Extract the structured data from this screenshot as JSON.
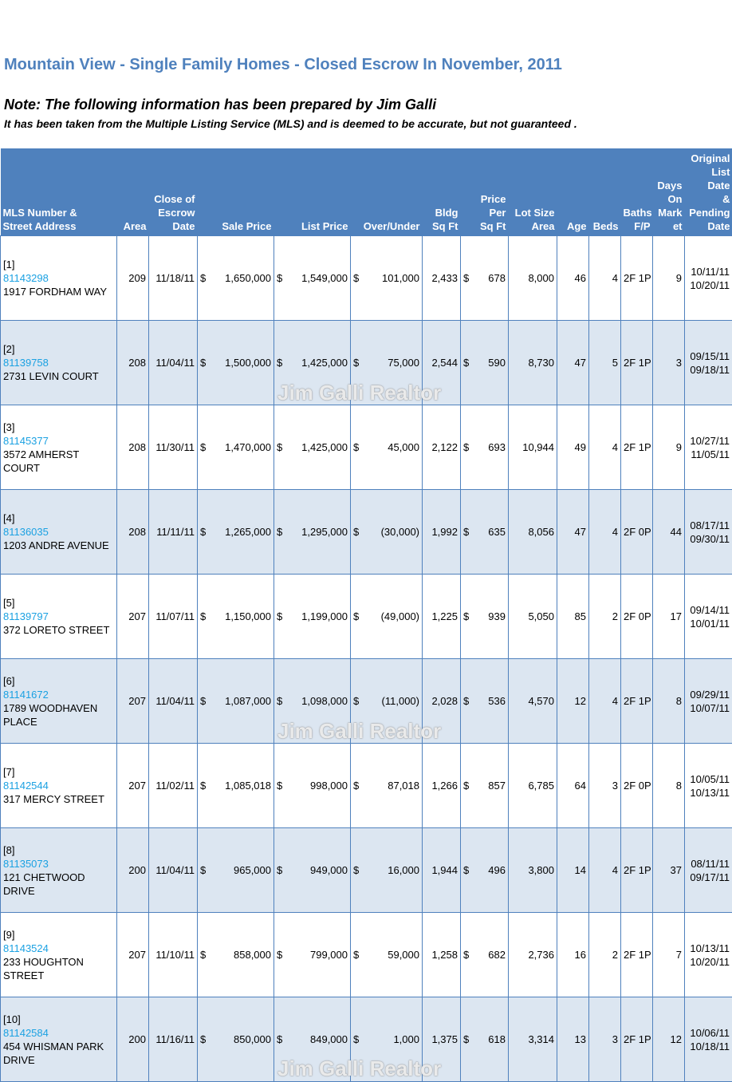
{
  "header": {
    "title": "Mountain View - Single Family Homes - Closed Escrow In November, 2011",
    "note": "Note:  The following information has been prepared by Jim Galli",
    "disclaimer": "It has been taken from the Multiple Listing Service (MLS) and is deemed to be accurate, but not guaranteed ."
  },
  "columns": {
    "mls": [
      "MLS Number &",
      "Street Address"
    ],
    "area": [
      "Area"
    ],
    "close": [
      "Close of",
      "Escrow",
      "Date"
    ],
    "sale": [
      "Sale Price"
    ],
    "list": [
      "List Price"
    ],
    "over": [
      "Over/Under"
    ],
    "bldg": [
      "Bldg",
      "Sq Ft"
    ],
    "ppsf": [
      "Price",
      "Per",
      "Sq Ft"
    ],
    "lot": [
      "Lot Size",
      "Area"
    ],
    "age": [
      "Age"
    ],
    "beds": [
      "Beds"
    ],
    "baths": [
      "Baths",
      "F/P"
    ],
    "dom": [
      "Days",
      "On",
      "Mark",
      "et"
    ],
    "orig": [
      "Original",
      "List Date",
      "&",
      "Pending",
      "Date"
    ]
  },
  "currency_symbol": "$",
  "rows": [
    {
      "idx": "[1]",
      "mls": "81143298",
      "addr": "1917 FORDHAM WAY",
      "area": "209",
      "close": "11/18/11",
      "sale": "1,650,000",
      "list": "1,549,000",
      "over": "101,000",
      "bldg": "2,433",
      "ppsf": "678",
      "lot": "8,000",
      "age": "46",
      "beds": "4",
      "baths": "2F 1P",
      "dom": "9",
      "orig_date": "10/11/11",
      "pend_date": "10/20/11"
    },
    {
      "idx": "[2]",
      "mls": "81139758",
      "addr": "2731 LEVIN COURT",
      "area": "208",
      "close": "11/04/11",
      "sale": "1,500,000",
      "list": "1,425,000",
      "over": "75,000",
      "bldg": "2,544",
      "ppsf": "590",
      "lot": "8,730",
      "age": "47",
      "beds": "5",
      "baths": "2F 1P",
      "dom": "3",
      "orig_date": "09/15/11",
      "pend_date": "09/18/11"
    },
    {
      "idx": "[3]",
      "mls": "81145377",
      "addr": "3572 AMHERST COURT",
      "area": "208",
      "close": "11/30/11",
      "sale": "1,470,000",
      "list": "1,425,000",
      "over": "45,000",
      "bldg": "2,122",
      "ppsf": "693",
      "lot": "10,944",
      "age": "49",
      "beds": "4",
      "baths": "2F 1P",
      "dom": "9",
      "orig_date": "10/27/11",
      "pend_date": "11/05/11"
    },
    {
      "idx": "[4]",
      "mls": "81136035",
      "addr": "1203 ANDRE AVENUE",
      "area": "208",
      "close": "11/11/11",
      "sale": "1,265,000",
      "list": "1,295,000",
      "over": "(30,000)",
      "bldg": "1,992",
      "ppsf": "635",
      "lot": "8,056",
      "age": "47",
      "beds": "4",
      "baths": "2F 0P",
      "dom": "44",
      "orig_date": "08/17/11",
      "pend_date": "09/30/11"
    },
    {
      "idx": "[5]",
      "mls": "81139797",
      "addr": "372 LORETO STREET",
      "area": "207",
      "close": "11/07/11",
      "sale": "1,150,000",
      "list": "1,199,000",
      "over": "(49,000)",
      "bldg": "1,225",
      "ppsf": "939",
      "lot": "5,050",
      "age": "85",
      "beds": "2",
      "baths": "2F 0P",
      "dom": "17",
      "orig_date": "09/14/11",
      "pend_date": "10/01/11"
    },
    {
      "idx": "[6]",
      "mls": "81141672",
      "addr": "1789 WOODHAVEN PLACE",
      "area": "207",
      "close": "11/04/11",
      "sale": "1,087,000",
      "list": "1,098,000",
      "over": "(11,000)",
      "bldg": "2,028",
      "ppsf": "536",
      "lot": "4,570",
      "age": "12",
      "beds": "4",
      "baths": "2F 1P",
      "dom": "8",
      "orig_date": "09/29/11",
      "pend_date": "10/07/11"
    },
    {
      "idx": "[7]",
      "mls": "81142544",
      "addr": "317 MERCY STREET",
      "area": "207",
      "close": "11/02/11",
      "sale": "1,085,018",
      "list": "998,000",
      "over": "87,018",
      "bldg": "1,266",
      "ppsf": "857",
      "lot": "6,785",
      "age": "64",
      "beds": "3",
      "baths": "2F 0P",
      "dom": "8",
      "orig_date": "10/05/11",
      "pend_date": "10/13/11"
    },
    {
      "idx": "[8]",
      "mls": "81135073",
      "addr": "121 CHETWOOD DRIVE",
      "area": "200",
      "close": "11/04/11",
      "sale": "965,000",
      "list": "949,000",
      "over": "16,000",
      "bldg": "1,944",
      "ppsf": "496",
      "lot": "3,800",
      "age": "14",
      "beds": "4",
      "baths": "2F 1P",
      "dom": "37",
      "orig_date": "08/11/11",
      "pend_date": "09/17/11"
    },
    {
      "idx": "[9]",
      "mls": "81143524",
      "addr": "233 HOUGHTON STREET",
      "area": "207",
      "close": "11/10/11",
      "sale": "858,000",
      "list": "799,000",
      "over": "59,000",
      "bldg": "1,258",
      "ppsf": "682",
      "lot": "2,736",
      "age": "16",
      "beds": "2",
      "baths": "2F 1P",
      "dom": "7",
      "orig_date": "10/13/11",
      "pend_date": "10/20/11"
    },
    {
      "idx": "[10]",
      "mls": "81142584",
      "addr": "454 WHISMAN PARK DRIVE",
      "area": "200",
      "close": "11/16/11",
      "sale": "850,000",
      "list": "849,000",
      "over": "1,000",
      "bldg": "1,375",
      "ppsf": "618",
      "lot": "3,314",
      "age": "13",
      "beds": "3",
      "baths": "2F 1P",
      "dom": "12",
      "orig_date": "10/06/11",
      "pend_date": "10/18/11"
    }
  ],
  "watermark": "Jim Galli Realtor"
}
